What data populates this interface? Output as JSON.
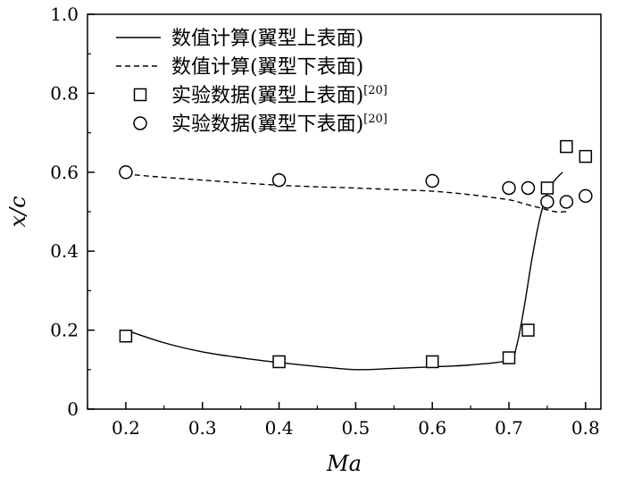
{
  "chart_data": {
    "type": "line",
    "xlabel": "Ma",
    "ylabel": "x/c",
    "xlim": [
      0.15,
      0.82
    ],
    "ylim": [
      0,
      1.0
    ],
    "xticks": [
      "0.2",
      "0.3",
      "0.4",
      "0.5",
      "0.6",
      "0.7",
      "0.8"
    ],
    "yticks": [
      "0",
      "0.2",
      "0.4",
      "0.6",
      "0.8",
      "1.0"
    ],
    "grid": false,
    "legend_position": "top-left",
    "series": [
      {
        "name": "数值计算(翼型上表面)",
        "kind": "line",
        "style": "solid",
        "x": [
          0.2,
          0.25,
          0.3,
          0.35,
          0.4,
          0.45,
          0.5,
          0.55,
          0.6,
          0.65,
          0.7,
          0.71,
          0.72,
          0.73,
          0.74,
          0.75,
          0.76,
          0.77
        ],
        "y": [
          0.2,
          0.168,
          0.145,
          0.13,
          0.118,
          0.108,
          0.1,
          0.103,
          0.107,
          0.112,
          0.125,
          0.16,
          0.26,
          0.38,
          0.48,
          0.55,
          0.58,
          0.6
        ]
      },
      {
        "name": "数值计算(翼型下表面)",
        "kind": "line",
        "style": "dashed",
        "x": [
          0.2,
          0.25,
          0.3,
          0.35,
          0.4,
          0.45,
          0.5,
          0.55,
          0.6,
          0.65,
          0.7,
          0.72,
          0.74,
          0.76,
          0.775
        ],
        "y": [
          0.595,
          0.587,
          0.58,
          0.573,
          0.567,
          0.563,
          0.56,
          0.556,
          0.552,
          0.543,
          0.53,
          0.52,
          0.51,
          0.5,
          0.5
        ]
      },
      {
        "name": "实验数据(翼型上表面)",
        "name_sup": "[20]",
        "kind": "marker",
        "marker": "square",
        "x": [
          0.2,
          0.4,
          0.6,
          0.7,
          0.725,
          0.75,
          0.775,
          0.8
        ],
        "y": [
          0.185,
          0.12,
          0.12,
          0.13,
          0.2,
          0.56,
          0.665,
          0.64
        ]
      },
      {
        "name": "实验数据(翼型下表面)",
        "name_sup": "[20]",
        "kind": "marker",
        "marker": "circle",
        "x": [
          0.2,
          0.4,
          0.6,
          0.7,
          0.725,
          0.75,
          0.775,
          0.8
        ],
        "y": [
          0.6,
          0.58,
          0.578,
          0.56,
          0.56,
          0.525,
          0.525,
          0.54
        ]
      }
    ]
  }
}
